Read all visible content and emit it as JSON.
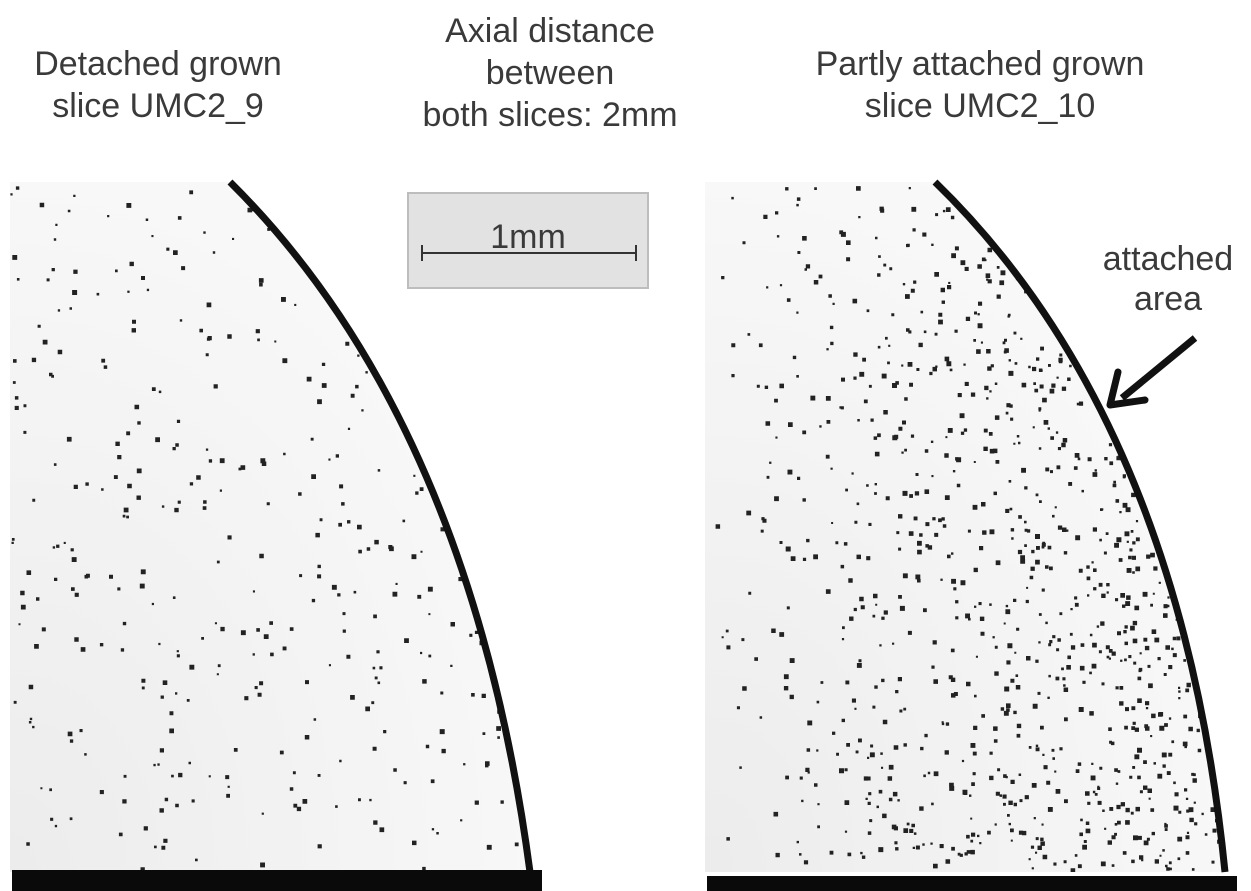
{
  "left_label": [
    "Detached grown",
    "slice UMC2_9"
  ],
  "center_label": [
    "Axial distance",
    "between",
    "both slices: 2mm"
  ],
  "right_label": [
    "Partly attached grown",
    "slice UMC2_10"
  ],
  "scale_bar": "1mm",
  "annotation": [
    "attached",
    "area"
  ]
}
